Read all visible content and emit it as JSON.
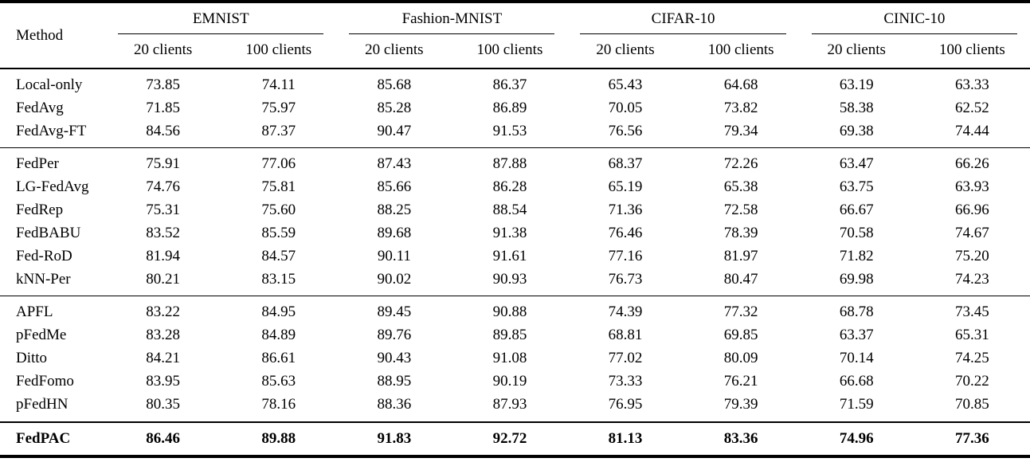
{
  "page": {
    "background_color": "#ffffff",
    "text_color": "#000000",
    "rule_color": "#000000"
  },
  "table": {
    "method_header": "Method",
    "datasets": [
      {
        "name": "EMNIST",
        "subcols": [
          "20 clients",
          "100 clients"
        ]
      },
      {
        "name": "Fashion-MNIST",
        "subcols": [
          "20 clients",
          "100 clients"
        ]
      },
      {
        "name": "CIFAR-10",
        "subcols": [
          "20 clients",
          "100 clients"
        ]
      },
      {
        "name": "CINIC-10",
        "subcols": [
          "20 clients",
          "100 clients"
        ]
      }
    ],
    "groups": [
      {
        "bold": false,
        "rows": [
          {
            "method": "Local-only",
            "values": [
              "73.85",
              "74.11",
              "85.68",
              "86.37",
              "65.43",
              "64.68",
              "63.19",
              "63.33"
            ]
          },
          {
            "method": "FedAvg",
            "values": [
              "71.85",
              "75.97",
              "85.28",
              "86.89",
              "70.05",
              "73.82",
              "58.38",
              "62.52"
            ]
          },
          {
            "method": "FedAvg-FT",
            "values": [
              "84.56",
              "87.37",
              "90.47",
              "91.53",
              "76.56",
              "79.34",
              "69.38",
              "74.44"
            ]
          }
        ]
      },
      {
        "bold": false,
        "rows": [
          {
            "method": "FedPer",
            "values": [
              "75.91",
              "77.06",
              "87.43",
              "87.88",
              "68.37",
              "72.26",
              "63.47",
              "66.26"
            ]
          },
          {
            "method": "LG-FedAvg",
            "values": [
              "74.76",
              "75.81",
              "85.66",
              "86.28",
              "65.19",
              "65.38",
              "63.75",
              "63.93"
            ]
          },
          {
            "method": "FedRep",
            "values": [
              "75.31",
              "75.60",
              "88.25",
              "88.54",
              "71.36",
              "72.58",
              "66.67",
              "66.96"
            ]
          },
          {
            "method": "FedBABU",
            "values": [
              "83.52",
              "85.59",
              "89.68",
              "91.38",
              "76.46",
              "78.39",
              "70.58",
              "74.67"
            ]
          },
          {
            "method": "Fed-RoD",
            "values": [
              "81.94",
              "84.57",
              "90.11",
              "91.61",
              "77.16",
              "81.97",
              "71.82",
              "75.20"
            ]
          },
          {
            "method": "kNN-Per",
            "values": [
              "80.21",
              "83.15",
              "90.02",
              "90.93",
              "76.73",
              "80.47",
              "69.98",
              "74.23"
            ]
          }
        ]
      },
      {
        "bold": false,
        "rows": [
          {
            "method": "APFL",
            "values": [
              "83.22",
              "84.95",
              "89.45",
              "90.88",
              "74.39",
              "77.32",
              "68.78",
              "73.45"
            ]
          },
          {
            "method": "pFedMe",
            "values": [
              "83.28",
              "84.89",
              "89.76",
              "89.85",
              "68.81",
              "69.85",
              "63.37",
              "65.31"
            ]
          },
          {
            "method": "Ditto",
            "values": [
              "84.21",
              "86.61",
              "90.43",
              "91.08",
              "77.02",
              "80.09",
              "70.14",
              "74.25"
            ]
          },
          {
            "method": "FedFomo",
            "values": [
              "83.95",
              "85.63",
              "88.95",
              "90.19",
              "73.33",
              "76.21",
              "66.68",
              "70.22"
            ]
          },
          {
            "method": "pFedHN",
            "values": [
              "80.35",
              "78.16",
              "88.36",
              "87.93",
              "76.95",
              "79.39",
              "71.59",
              "70.85"
            ]
          }
        ]
      },
      {
        "bold": true,
        "rows": [
          {
            "method": "FedPAC",
            "values": [
              "86.46",
              "89.88",
              "91.83",
              "92.72",
              "81.13",
              "83.36",
              "74.96",
              "77.36"
            ]
          }
        ]
      }
    ]
  }
}
